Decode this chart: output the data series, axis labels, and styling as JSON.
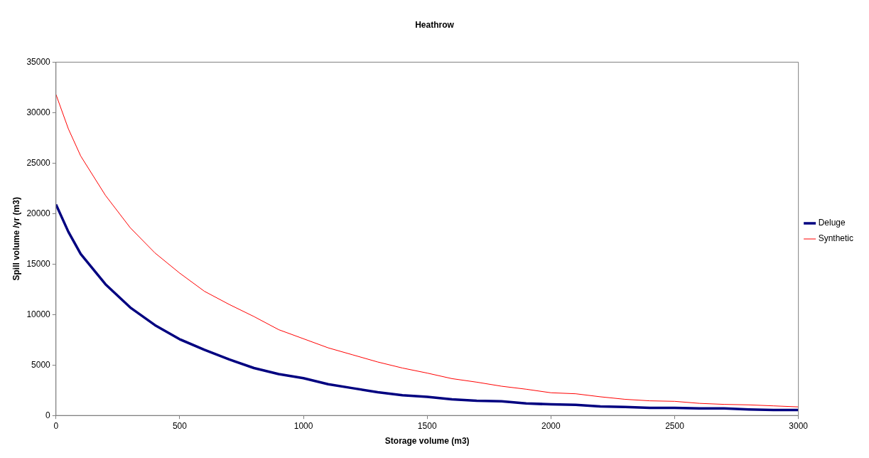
{
  "chart_data": {
    "type": "line",
    "title": "Heathrow",
    "xlabel": "Storage volume (m3)",
    "ylabel": "Spill volume /yr (m3)",
    "x": [
      0,
      50,
      100,
      200,
      300,
      400,
      500,
      600,
      700,
      800,
      900,
      1000,
      1100,
      1200,
      1300,
      1400,
      1500,
      1600,
      1700,
      1800,
      1900,
      2000,
      2100,
      2200,
      2300,
      2400,
      2500,
      2600,
      2700,
      2800,
      2900,
      3000
    ],
    "series": [
      {
        "name": "Deluge",
        "color": "#000080",
        "values": [
          20900,
          18200,
          16000,
          13000,
          10700,
          8950,
          7550,
          6500,
          5550,
          4700,
          4100,
          3700,
          3100,
          2700,
          2300,
          2000,
          1850,
          1600,
          1450,
          1400,
          1200,
          1100,
          1050,
          900,
          850,
          750,
          750,
          700,
          700,
          600,
          550,
          550
        ]
      },
      {
        "name": "Synthetic",
        "color": "#ff0000",
        "values": [
          31800,
          28400,
          25700,
          21800,
          18600,
          16100,
          14100,
          12300,
          11000,
          9800,
          8500,
          7600,
          6700,
          6000,
          5300,
          4700,
          4200,
          3650,
          3300,
          2900,
          2600,
          2250,
          2150,
          1850,
          1600,
          1450,
          1400,
          1200,
          1100,
          1050,
          950,
          850
        ]
      }
    ],
    "xlim": [
      0,
      3000
    ],
    "xticks": [
      0,
      500,
      1000,
      1500,
      2000,
      2500,
      3000
    ],
    "ylim": [
      0,
      35000
    ],
    "yticks": [
      0,
      5000,
      10000,
      15000,
      20000,
      25000,
      30000,
      35000
    ],
    "grid": false,
    "legend": "right",
    "marker": "none",
    "line_style": "solid"
  }
}
